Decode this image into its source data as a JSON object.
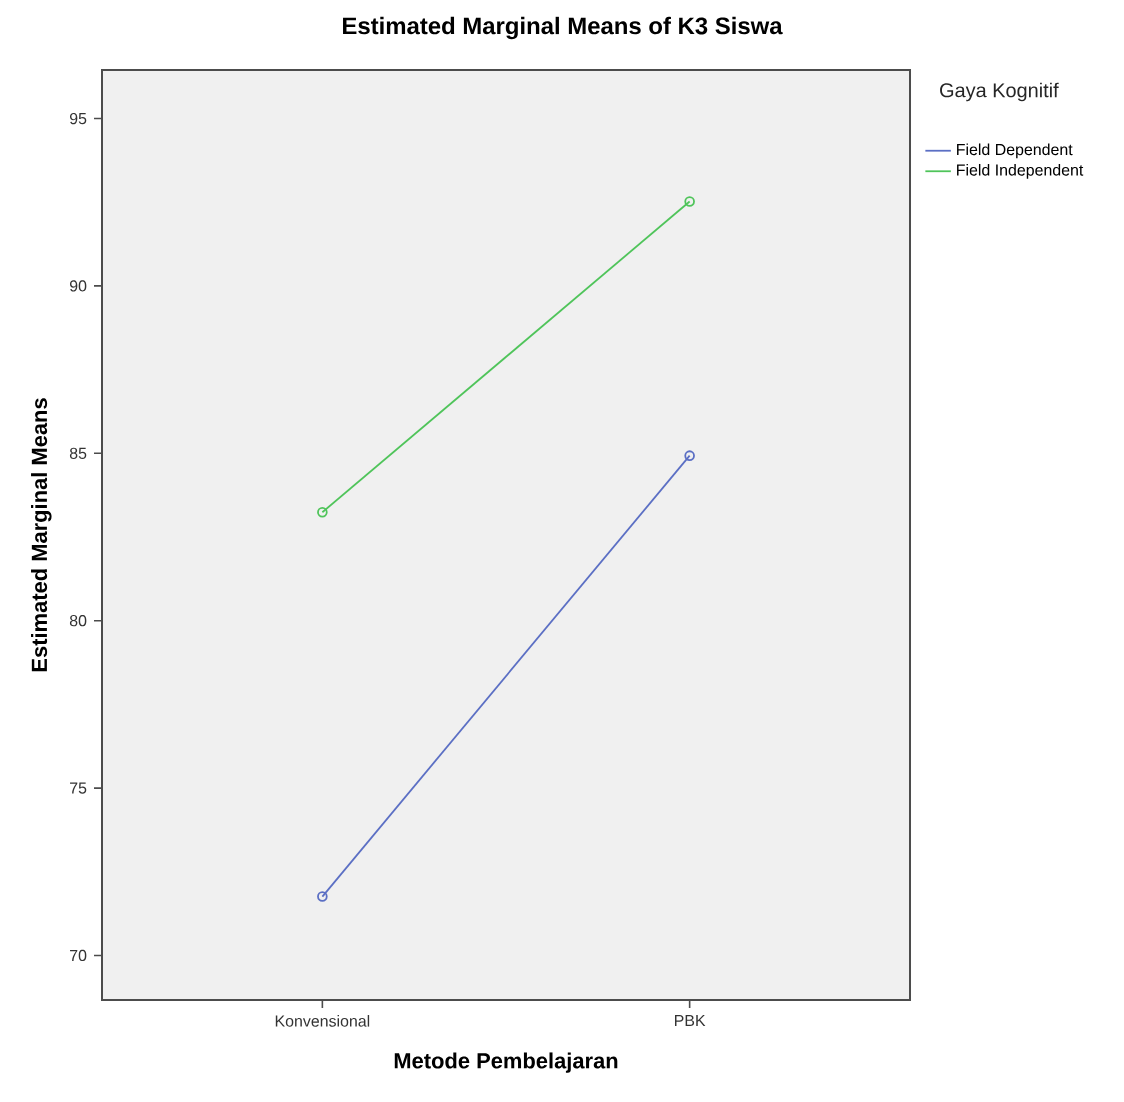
{
  "chart_data": {
    "type": "line",
    "title": "Estimated Marginal Means of K3 Siswa",
    "xlabel": "Metode Pembelajaran",
    "ylabel": "Estimated Marginal Means",
    "legend_title": "Gaya Kognitif",
    "categories": [
      "Konvensional",
      "PBK"
    ],
    "series": [
      {
        "name": "Field Dependent",
        "color": "#5b6fc4",
        "values": [
          71.76,
          84.93
        ]
      },
      {
        "name": "Field Independent",
        "color": "#4fc45a",
        "values": [
          83.24,
          92.52
        ]
      }
    ],
    "ylim": [
      68.67,
      96.45
    ],
    "yticks": [
      70,
      75,
      80,
      85,
      90,
      95
    ],
    "legend": "right",
    "marker": "circle",
    "line_style": "solid"
  }
}
